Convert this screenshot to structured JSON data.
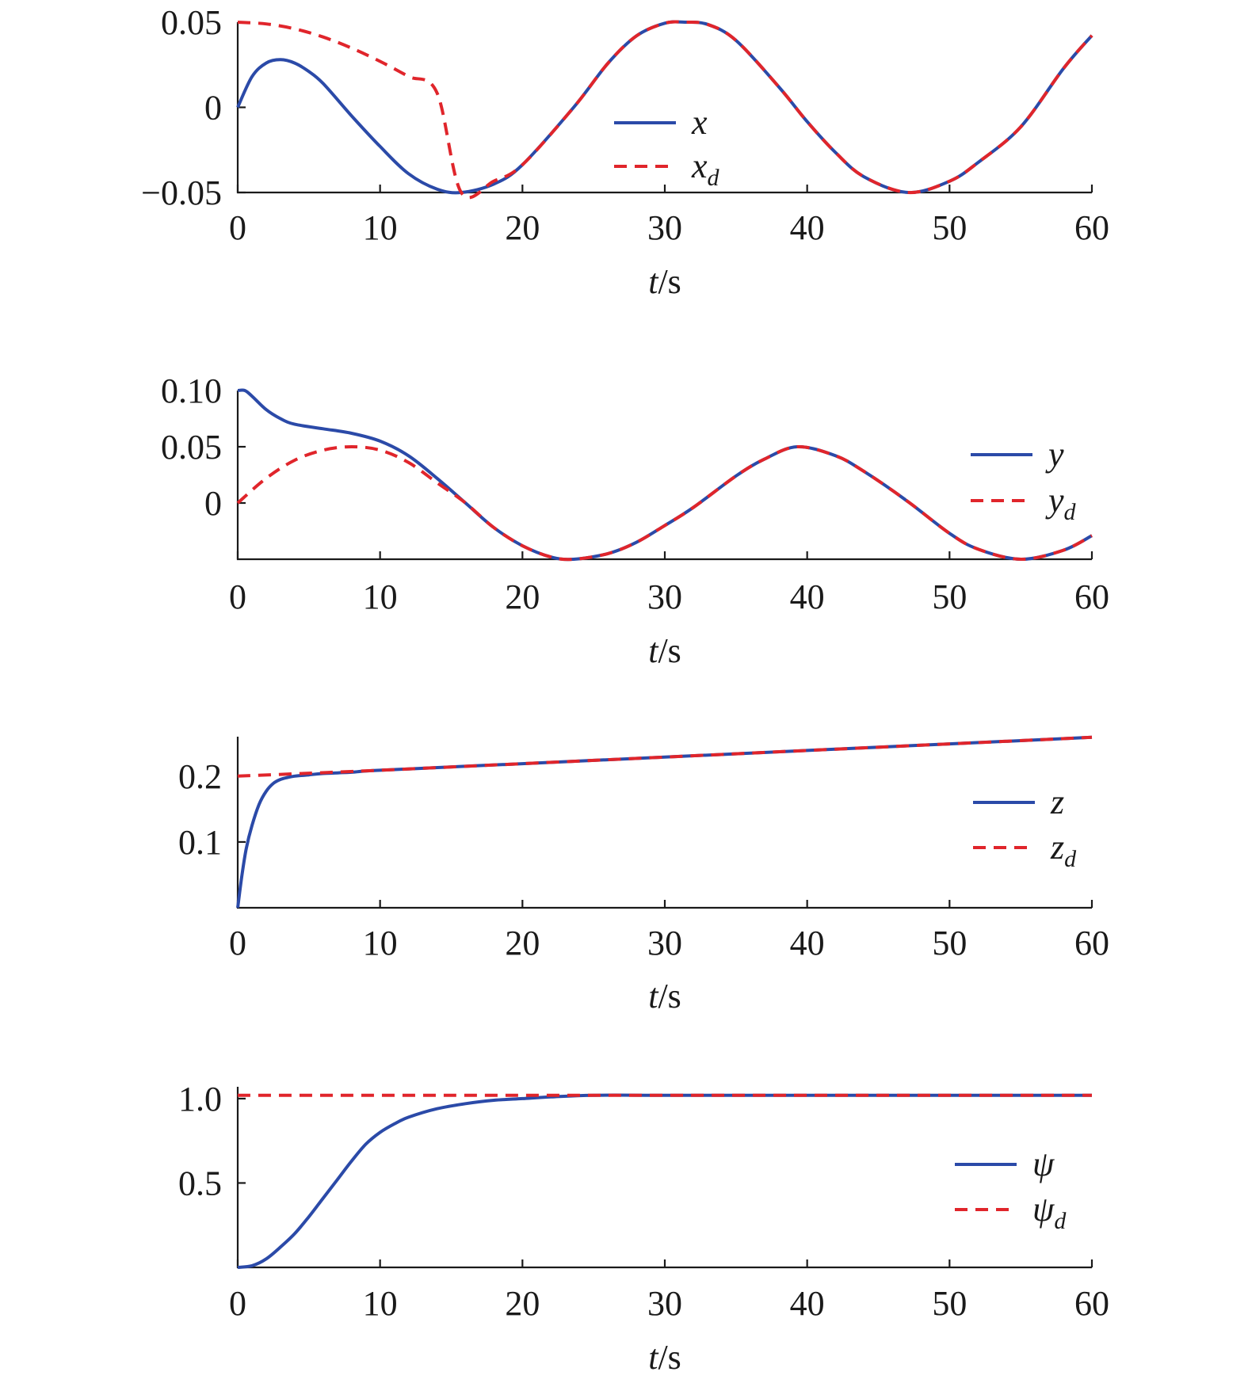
{
  "chart_data": [
    {
      "type": "line",
      "xlabel": "t/s",
      "xlim": [
        0,
        60
      ],
      "ylim": [
        -0.05,
        0.05
      ],
      "xticks": [
        "0",
        "10",
        "20",
        "30",
        "40",
        "50",
        "60"
      ],
      "yticks": [
        {
          "value": -0.05,
          "label": "−0.05"
        },
        {
          "value": 0,
          "label": "0"
        },
        {
          "value": 0.05,
          "label": "0.05"
        }
      ],
      "legend_position": "center",
      "series": [
        {
          "name": "x",
          "sub": "",
          "color": "#2b4aa8",
          "dash": "solid",
          "x": [
            0,
            1,
            2,
            3,
            4,
            5,
            6,
            8,
            10,
            12,
            14,
            15.7,
            18,
            20,
            23.6,
            26,
            28,
            30,
            31.4,
            33,
            35,
            38,
            40,
            42,
            44,
            47.1,
            50,
            52,
            55,
            58,
            60
          ],
          "y": [
            0,
            0.018,
            0.026,
            0.028,
            0.026,
            0.021,
            0.014,
            -0.005,
            -0.023,
            -0.039,
            -0.048,
            -0.05,
            -0.045,
            -0.0337,
            0,
            0.0258,
            0.0419,
            0.0494,
            0.05,
            0.0487,
            0.0393,
            0.0121,
            -0.0084,
            -0.0266,
            -0.0408,
            -0.05,
            -0.0434,
            -0.0324,
            -0.0115,
            0.0228,
            0.0422
          ]
        },
        {
          "name": "x",
          "sub": "d",
          "color": "#e0252b",
          "dash": "dashed",
          "x": [
            0,
            2,
            4,
            6,
            8,
            10,
            12,
            14,
            15.7,
            18,
            20,
            23.6,
            26,
            28,
            30,
            31.4,
            33,
            35,
            38,
            40,
            42,
            44,
            47.1,
            50,
            52,
            55,
            58,
            60
          ],
          "y": [
            0.05,
            0.049,
            0.0461,
            0.0413,
            0.0348,
            0.027,
            0.0181,
            0.0085,
            -0.05,
            -0.0433,
            -0.0337,
            0,
            0.0258,
            0.0419,
            0.0494,
            0.05,
            0.0487,
            0.0393,
            0.0121,
            -0.0084,
            -0.0266,
            -0.0408,
            -0.05,
            -0.0434,
            -0.0324,
            -0.0115,
            0.0228,
            0.0422
          ]
        }
      ]
    },
    {
      "type": "line",
      "xlabel": "t/s",
      "xlim": [
        0,
        60
      ],
      "ylim": [
        -0.05,
        0.1
      ],
      "xticks": [
        "0",
        "10",
        "20",
        "30",
        "40",
        "50",
        "60"
      ],
      "yticks": [
        {
          "value": 0,
          "label": "0"
        },
        {
          "value": 0.05,
          "label": "0.05"
        },
        {
          "value": 0.1,
          "label": "0.10"
        }
      ],
      "legend_position": "right",
      "series": [
        {
          "name": "y",
          "sub": "",
          "color": "#2b4aa8",
          "dash": "solid",
          "x": [
            0,
            0.5,
            1,
            2,
            3,
            4,
            6,
            8,
            10,
            12,
            14,
            16,
            18,
            20,
            22,
            23.6,
            26,
            28,
            30,
            32,
            35,
            37,
            39.3,
            42,
            44,
            47,
            50,
            52,
            55,
            58,
            60
          ],
          "y": [
            0.1,
            0.1,
            0.095,
            0.083,
            0.075,
            0.07,
            0.066,
            0.062,
            0.055,
            0.042,
            0.022,
            0.0,
            -0.022,
            -0.038,
            -0.048,
            -0.05,
            -0.045,
            -0.035,
            -0.02,
            -0.004,
            0.024,
            0.039,
            0.05,
            0.042,
            0.028,
            0.002,
            -0.027,
            -0.041,
            -0.05,
            -0.042,
            -0.029
          ]
        },
        {
          "name": "y",
          "sub": "d",
          "color": "#e0252b",
          "dash": "dashed",
          "x": [
            0,
            2,
            4,
            6,
            8,
            10,
            12,
            14,
            16,
            18,
            20,
            22,
            23.6,
            26,
            28,
            30,
            32,
            35,
            37,
            39.3,
            42,
            44,
            47,
            50,
            52,
            55,
            58,
            60
          ],
          "y": [
            0,
            0.022,
            0.038,
            0.047,
            0.05,
            0.047,
            0.036,
            0.018,
            0.0,
            -0.022,
            -0.038,
            -0.048,
            -0.05,
            -0.045,
            -0.035,
            -0.02,
            -0.004,
            0.024,
            0.039,
            0.05,
            0.042,
            0.028,
            0.002,
            -0.027,
            -0.041,
            -0.05,
            -0.042,
            -0.029
          ]
        }
      ]
    },
    {
      "type": "line",
      "xlabel": "t/s",
      "xlim": [
        0,
        60
      ],
      "ylim": [
        0,
        0.26
      ],
      "xticks": [
        "0",
        "10",
        "20",
        "30",
        "40",
        "50",
        "60"
      ],
      "yticks": [
        {
          "value": 0.1,
          "label": "0.1"
        },
        {
          "value": 0.2,
          "label": "0.2"
        }
      ],
      "legend_position": "right",
      "series": [
        {
          "name": "z",
          "sub": "",
          "color": "#2b4aa8",
          "dash": "solid",
          "x": [
            0,
            0.3,
            0.6,
            1,
            1.5,
            2,
            2.5,
            3,
            3.5,
            4,
            5,
            6,
            8,
            10,
            20,
            30,
            40,
            50,
            60
          ],
          "y": [
            0,
            0.05,
            0.09,
            0.125,
            0.157,
            0.177,
            0.189,
            0.195,
            0.198,
            0.2,
            0.202,
            0.204,
            0.206,
            0.209,
            0.219,
            0.229,
            0.239,
            0.249,
            0.259
          ]
        },
        {
          "name": "z",
          "sub": "d",
          "color": "#e0252b",
          "dash": "dashed",
          "x": [
            0,
            10,
            20,
            30,
            40,
            50,
            60
          ],
          "y": [
            0.2,
            0.209,
            0.219,
            0.229,
            0.239,
            0.249,
            0.259
          ]
        }
      ]
    },
    {
      "type": "line",
      "xlabel": "t/s",
      "xlim": [
        0,
        60
      ],
      "ylim": [
        0,
        1.07
      ],
      "xticks": [
        "0",
        "10",
        "20",
        "30",
        "40",
        "50",
        "60"
      ],
      "yticks": [
        {
          "value": 0.5,
          "label": "0.5"
        },
        {
          "value": 1.0,
          "label": "1.0"
        }
      ],
      "legend_position": "right",
      "series": [
        {
          "name": "ψ",
          "sub": "",
          "color": "#2b4aa8",
          "dash": "solid",
          "x": [
            0,
            1,
            2,
            3,
            4,
            5,
            6,
            7,
            8,
            9,
            10,
            11,
            12,
            14,
            16,
            18,
            20,
            22,
            25,
            30,
            40,
            50,
            60
          ],
          "y": [
            0,
            0.01,
            0.05,
            0.12,
            0.2,
            0.3,
            0.41,
            0.52,
            0.63,
            0.73,
            0.8,
            0.85,
            0.89,
            0.94,
            0.97,
            0.99,
            1.0,
            1.01,
            1.02,
            1.02,
            1.02,
            1.02,
            1.02
          ]
        },
        {
          "name": "ψ",
          "sub": "d",
          "color": "#e0252b",
          "dash": "dashed",
          "x": [
            0,
            60
          ],
          "y": [
            1.02,
            1.02
          ]
        }
      ]
    }
  ]
}
